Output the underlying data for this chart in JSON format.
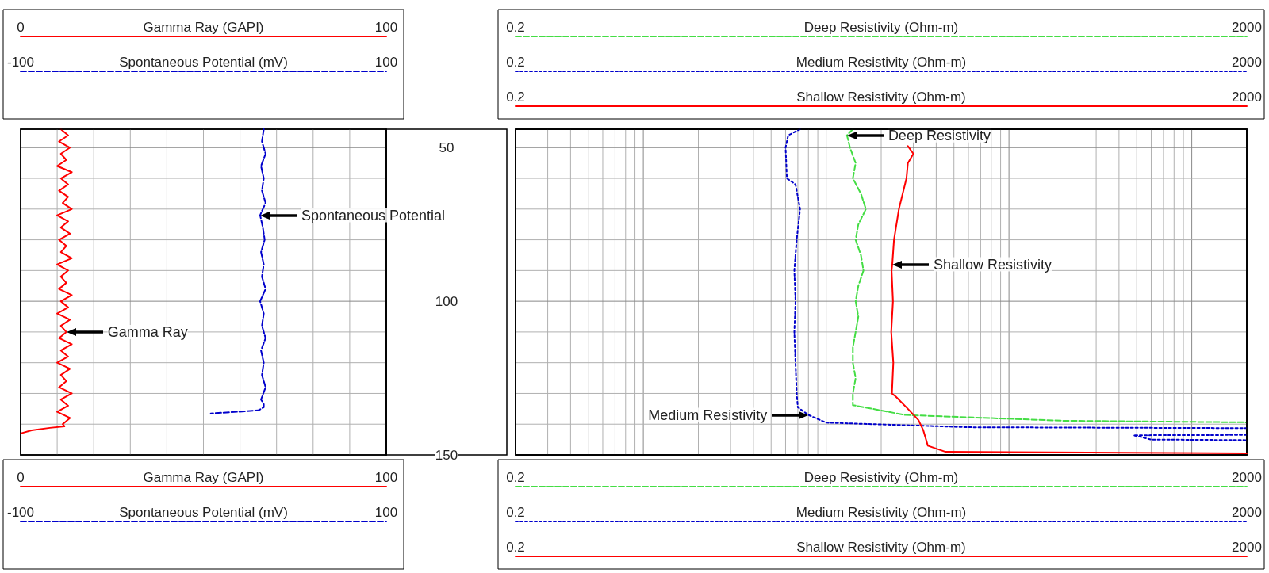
{
  "chart_data": [
    {
      "type": "line",
      "xlim": [
        0,
        100
      ],
      "xticks": [
        0,
        100
      ],
      "xlabel": "Gamma Ray (GAPI)",
      "x2lim": [
        0,
        100
      ],
      "x2ticks": [
        0,
        100
      ],
      "x2label": "Gamma Ray (GAPI)",
      "ylim": [
        150,
        44
      ],
      "yticks": [
        50,
        100,
        150
      ],
      "grid": true,
      "series": [
        {
          "color": "#ff0000",
          "line_style": "solid",
          "x": [
            11,
            13,
            10.5,
            13.5,
            11,
            12.5,
            10,
            14,
            11,
            13,
            10.5,
            13,
            11.5,
            14,
            10,
            13,
            11,
            13.5,
            10.5,
            12.5,
            11,
            14,
            10,
            13,
            11,
            12.5,
            10.5,
            14,
            11,
            13,
            10,
            13.5,
            11,
            12.5,
            10.5,
            14,
            11,
            13,
            10,
            13.5,
            11,
            12.5,
            10.5,
            14,
            11,
            13,
            10,
            13.5,
            11.5,
            12,
            8,
            3,
            0
          ],
          "values": [
            44,
            46,
            48,
            50,
            52,
            54,
            56,
            58,
            60,
            62,
            64,
            66,
            68,
            70,
            72,
            74,
            76,
            78,
            80,
            82,
            84,
            86,
            88,
            90,
            92,
            94,
            96,
            98,
            100,
            102,
            104,
            106,
            108,
            110,
            112,
            114,
            116,
            118,
            120,
            122,
            124,
            126,
            128,
            130,
            132,
            134,
            136,
            138,
            140,
            140.7,
            141.2,
            142,
            143
          ]
        }
      ],
      "annotations": [
        {
          "text": "Gamma Ray",
          "x": 12.5,
          "y": 110
        }
      ]
    },
    {
      "type": "line",
      "xlim": [
        -100,
        100
      ],
      "xticks": [
        -100,
        100
      ],
      "xlabel": "Spontaneous Potential (mV)",
      "x2lim": [
        -100,
        100
      ],
      "x2ticks": [
        -100,
        100
      ],
      "x2label": "Spontaneous Potential (mV)",
      "ylim": [
        150,
        44
      ],
      "tick_labels": "x",
      "series": [
        {
          "color": "#0000cc",
          "line_style": "dashed",
          "x": [
            33,
            32,
            34,
            31.5,
            33,
            32,
            34,
            31,
            32.5,
            33.5,
            31.5,
            33,
            32,
            34,
            31,
            33,
            32,
            34,
            31.5,
            33,
            32,
            34,
            31.5,
            33,
            33,
            30,
            15,
            4
          ],
          "values": [
            44,
            48,
            52,
            56,
            60,
            64,
            68,
            72,
            76,
            80,
            84,
            88,
            92,
            96,
            100,
            104,
            108,
            112,
            116,
            120,
            124,
            128,
            132,
            133.5,
            134.5,
            135.5,
            136.1,
            136.5
          ]
        }
      ],
      "annotations": [
        {
          "text": "Spontaneous Potential",
          "x": 31,
          "y": 72
        }
      ]
    },
    {
      "type": "line",
      "log": "x",
      "xlim": [
        0.2,
        2000
      ],
      "xticks": [
        0.2,
        2000
      ],
      "xlabel": "Deep Resistivity (Ohm-m)",
      "x2lim": [
        0.2,
        2000
      ],
      "x2ticks": [
        0.2,
        2000
      ],
      "x2label": "Deep Resistivity (Ohm-m)",
      "ylim": [
        150,
        44
      ],
      "grid": true,
      "tick_labels": "x",
      "series": [
        {
          "color": "#44dd44",
          "line_style": "dashed",
          "x": [
            14,
            13,
            13.5,
            14.5,
            14,
            15.5,
            16.5,
            15,
            14.5,
            15.5,
            16,
            15,
            14.5,
            15,
            14.5,
            14,
            14,
            14.5,
            14,
            14,
            27,
            200,
            2000
          ],
          "values": [
            44,
            46,
            50,
            55,
            60,
            65,
            70,
            75,
            80,
            85,
            90,
            95,
            100,
            105,
            110,
            115,
            120,
            125,
            130,
            133.8,
            137,
            138.9,
            139.4
          ]
        }
      ],
      "annotations": [
        {
          "text": "Deep Resistivity",
          "x": 13,
          "y": 46
        }
      ]
    },
    {
      "type": "line",
      "log": "x",
      "xlim": [
        0.2,
        2000
      ],
      "xticks": [
        0.2,
        2000
      ],
      "xlabel": "Medium Resistivity (Ohm-m)",
      "x2lim": [
        0.2,
        2000
      ],
      "x2ticks": [
        0.2,
        2000
      ],
      "x2label": "Medium Resistivity (Ohm-m)",
      "ylim": [
        150,
        44
      ],
      "tick_labels": "x",
      "series": [
        {
          "color": "#0000cc",
          "line_style": "dotted",
          "x": [
            7.2,
            6.2,
            6,
            6.1,
            6.8,
            7.2,
            6.9,
            6.7,
            6.8,
            6.7,
            6.8,
            6.9,
            7,
            8,
            10,
            60,
            2000,
            null,
            2000,
            480,
            600,
            2000
          ],
          "values": [
            44,
            46,
            50,
            60,
            62,
            70,
            80,
            90,
            100,
            110,
            120,
            130,
            134.5,
            137,
            139.5,
            141,
            141.3,
            null,
            143.5,
            143.6,
            145,
            145.2
          ]
        }
      ],
      "annotations": [
        {
          "text": "Medium Resistivity",
          "x": 8,
          "y": 137
        }
      ]
    },
    {
      "type": "line",
      "log": "x",
      "xlim": [
        0.2,
        2000
      ],
      "xticks": [
        0.2,
        2000
      ],
      "xlabel": "Shallow Resistivity (Ohm-m)",
      "x2lim": [
        0.2,
        2000
      ],
      "x2ticks": [
        0.2,
        2000
      ],
      "x2label": "Shallow Resistivity (Ohm-m)",
      "ylim": [
        150,
        44
      ],
      "tick_labels": "x",
      "series": [
        {
          "color": "#ff0000",
          "line_style": "solid",
          "x": [
            28,
            30,
            28,
            27.5,
            25,
            23.5,
            23,
            22.8,
            23.2,
            22.7,
            23.3,
            22.9,
            24,
            28,
            32,
            34,
            36,
            45,
            2000
          ],
          "values": [
            49.5,
            52,
            55,
            60,
            70,
            80,
            88,
            90,
            100,
            110,
            120,
            130,
            131,
            135,
            138.7,
            142,
            147,
            149,
            149.5
          ]
        }
      ],
      "annotations": [
        {
          "text": "Shallow Resistivity",
          "x": 23,
          "y": 88
        }
      ]
    }
  ]
}
